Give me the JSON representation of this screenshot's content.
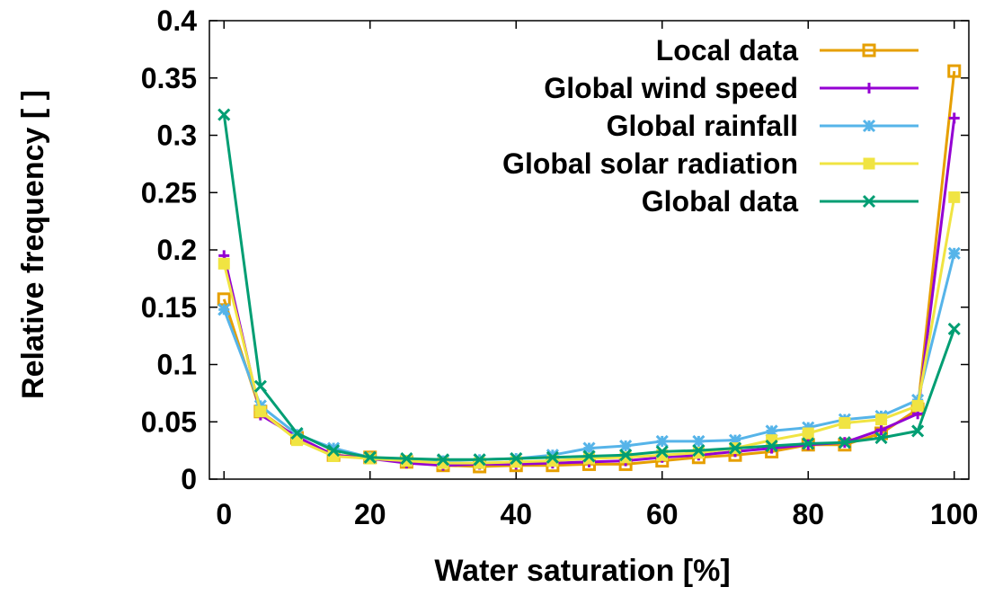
{
  "chart_data": {
    "type": "line",
    "title": "",
    "xlabel": "Water saturation [%]",
    "ylabel": "Relative frequency [ ]",
    "xlim": [
      -2,
      102
    ],
    "ylim": [
      0,
      0.4
    ],
    "xticks": [
      0,
      20,
      40,
      60,
      80,
      100
    ],
    "yticks": [
      0,
      0.05,
      0.1,
      0.15,
      0.2,
      0.25,
      0.3,
      0.35,
      0.4
    ],
    "ytick_labels": [
      "0",
      "0.05",
      "0.1",
      "0.15",
      "0.2",
      "0.25",
      "0.3",
      "0.35",
      "0.4"
    ],
    "grid": false,
    "legend_position": "top-right",
    "x": [
      0,
      5,
      10,
      15,
      20,
      25,
      30,
      35,
      40,
      45,
      50,
      55,
      60,
      65,
      70,
      75,
      80,
      85,
      90,
      95,
      100
    ],
    "series": [
      {
        "name": "Local data",
        "color": "#e69f00",
        "marker": "open-square",
        "values": [
          0.157,
          0.059,
          0.036,
          0.021,
          0.019,
          0.015,
          0.012,
          0.011,
          0.012,
          0.012,
          0.013,
          0.013,
          0.016,
          0.019,
          0.021,
          0.024,
          0.03,
          0.03,
          0.04,
          0.061,
          0.356
        ]
      },
      {
        "name": "Global wind speed",
        "color": "#9400d3",
        "marker": "plus",
        "values": [
          0.195,
          0.056,
          0.037,
          0.021,
          0.018,
          0.014,
          0.012,
          0.013,
          0.013,
          0.014,
          0.015,
          0.016,
          0.019,
          0.021,
          0.024,
          0.027,
          0.03,
          0.032,
          0.043,
          0.057,
          0.315
        ]
      },
      {
        "name": "Global rainfall",
        "color": "#56b4e9",
        "marker": "star",
        "values": [
          0.148,
          0.064,
          0.039,
          0.027,
          0.019,
          0.016,
          0.016,
          0.017,
          0.018,
          0.021,
          0.027,
          0.029,
          0.033,
          0.033,
          0.034,
          0.042,
          0.045,
          0.052,
          0.055,
          0.069,
          0.197
        ]
      },
      {
        "name": "Global solar radiation",
        "color": "#f0e442",
        "marker": "filled-square",
        "values": [
          0.188,
          0.059,
          0.034,
          0.02,
          0.018,
          0.016,
          0.014,
          0.014,
          0.015,
          0.016,
          0.018,
          0.019,
          0.021,
          0.023,
          0.027,
          0.034,
          0.04,
          0.049,
          0.052,
          0.064,
          0.246
        ]
      },
      {
        "name": "Global data",
        "color": "#009e73",
        "marker": "x",
        "values": [
          0.318,
          0.081,
          0.04,
          0.025,
          0.019,
          0.018,
          0.017,
          0.017,
          0.018,
          0.019,
          0.02,
          0.021,
          0.024,
          0.025,
          0.027,
          0.029,
          0.031,
          0.032,
          0.036,
          0.042,
          0.131
        ]
      }
    ]
  }
}
